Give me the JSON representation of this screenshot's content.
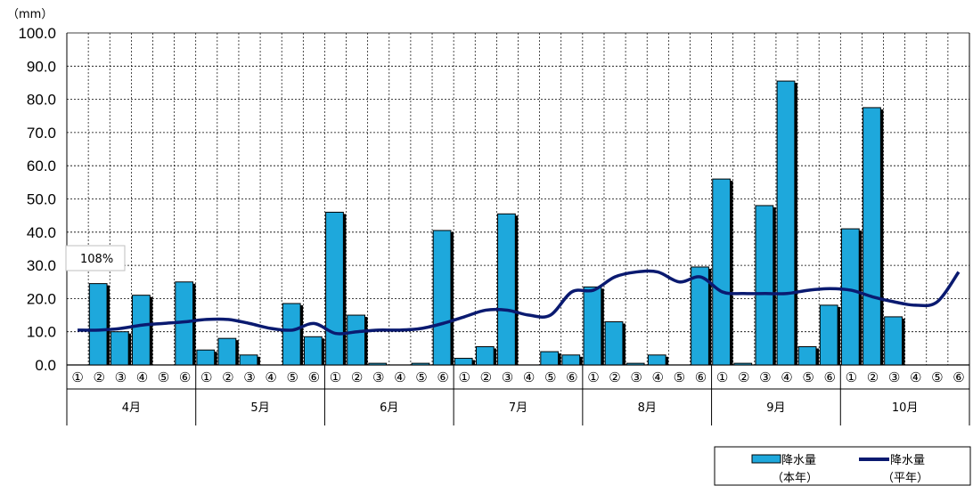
{
  "chart_data": {
    "type": "bar",
    "unit_label": "（mm）",
    "ylim": [
      0,
      100
    ],
    "yticks": [
      "0.0",
      "10.0",
      "20.0",
      "30.0",
      "40.0",
      "50.0",
      "60.0",
      "70.0",
      "80.0",
      "90.0",
      "100.0"
    ],
    "dekad_labels": [
      "①",
      "②",
      "③",
      "④",
      "⑤",
      "⑥"
    ],
    "months": [
      "4月",
      "5月",
      "6月",
      "7月",
      "8月",
      "9月",
      "10月"
    ],
    "annotation": "108%",
    "colors": {
      "bar": "#1EA8DC",
      "bar_shadow": "#000000",
      "line": "#0A1A70",
      "grid": "#000000"
    },
    "series": [
      {
        "name": "降水量（本年）",
        "kind": "bar",
        "values": [
          0,
          24.5,
          10,
          21,
          0,
          25,
          4.5,
          8,
          3,
          0,
          18.5,
          8.5,
          46,
          15,
          0.5,
          0,
          0.5,
          40.5,
          2,
          5.5,
          45.5,
          0,
          4,
          3,
          23.5,
          13,
          0.5,
          3,
          0,
          29.5,
          56,
          0.5,
          48,
          85.5,
          5.5,
          18,
          41,
          77.5,
          14.5,
          0,
          0,
          0
        ]
      },
      {
        "name": "降水量（平年）",
        "kind": "line",
        "values": [
          10.5,
          10.5,
          11,
          12,
          12.5,
          13,
          13.7,
          13.7,
          12.5,
          11,
          10.5,
          12.5,
          9.5,
          10,
          10.5,
          10.5,
          11,
          12.5,
          14.5,
          16.5,
          16.5,
          15,
          15,
          22,
          22.5,
          26.5,
          28,
          28,
          25,
          26.5,
          22,
          21.5,
          21.5,
          21.5,
          22.5,
          23,
          22.5,
          20.5,
          19,
          18,
          19,
          28
        ]
      }
    ],
    "legend": {
      "bar_label_1": "降水量",
      "bar_label_2": "（本年）",
      "line_label_1": "降水量",
      "line_label_2": "（平年）"
    }
  }
}
